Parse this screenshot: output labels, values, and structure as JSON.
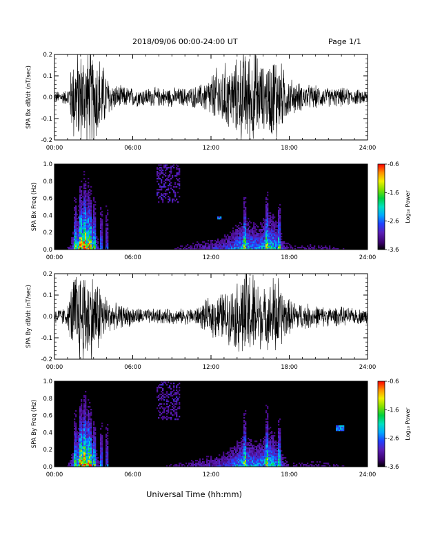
{
  "header": {
    "title": "2018/09/06   00:00-24:00 UT",
    "page": "Page 1/1"
  },
  "footer": {
    "xlabel": "Universal Time (hh:mm)"
  },
  "colorbar": {
    "label": "Log₁₀ Power",
    "ticks": [
      "-0.6",
      "-1.6",
      "-2.6",
      "-3.6"
    ],
    "range": [
      -3.6,
      -0.6
    ]
  },
  "colors": {
    "waveform": "#000000",
    "spectrogram_background": "#000000",
    "colormap": [
      "#000000",
      "#3a006a",
      "#5b1fb8",
      "#2040ff",
      "#00a8ff",
      "#00e0c0",
      "#00d040",
      "#80e000",
      "#f0f000",
      "#ff9000",
      "#ff0000"
    ]
  },
  "chart_data": [
    {
      "type": "line",
      "ylabel": "SPA Bx dB/dt (nT/sec)",
      "xlabel": "",
      "xlim": [
        0,
        24
      ],
      "ylim": [
        -0.2,
        0.2
      ],
      "xticks": [
        "00:00",
        "06:00",
        "12:00",
        "18:00",
        "24:00"
      ],
      "yticks": [
        "0.2",
        "0.1",
        "0.0",
        "-0.1",
        "-0.2"
      ],
      "series": [
        {
          "envelope_hours": [
            0,
            1,
            1.5,
            2,
            2.5,
            3,
            3.5,
            4,
            4.5,
            5,
            6,
            7,
            8,
            9,
            10,
            11,
            11.5,
            12,
            12.5,
            13,
            13.5,
            14,
            14.5,
            15,
            15.5,
            16,
            16.5,
            17,
            17.5,
            18,
            19,
            20,
            21,
            22,
            23,
            24
          ],
          "envelope_amplitude": [
            0.03,
            0.04,
            0.25,
            0.25,
            0.25,
            0.25,
            0.22,
            0.12,
            0.07,
            0.06,
            0.05,
            0.05,
            0.05,
            0.05,
            0.05,
            0.06,
            0.08,
            0.12,
            0.16,
            0.18,
            0.17,
            0.2,
            0.25,
            0.25,
            0.25,
            0.16,
            0.2,
            0.25,
            0.16,
            0.1,
            0.07,
            0.06,
            0.05,
            0.05,
            0.04,
            0.04
          ]
        }
      ]
    },
    {
      "type": "heatmap",
      "ylabel": "SPA Bx Freq (Hz)",
      "xlim": [
        0,
        24
      ],
      "ylim": [
        0,
        1.0
      ],
      "xticks": [
        "00:00",
        "06:00",
        "12:00",
        "18:00",
        "24:00"
      ],
      "yticks": [
        "1.0",
        "0.8",
        "0.6",
        "0.4",
        "0.2",
        "0.0"
      ],
      "colorbar": "Log₁₀ Power",
      "zlim": [
        -3.6,
        -0.6
      ]
    },
    {
      "type": "line",
      "ylabel": "SPA By dB/dt (nT/sec)",
      "xlabel": "",
      "xlim": [
        0,
        24
      ],
      "ylim": [
        -0.2,
        0.2
      ],
      "xticks": [
        "00:00",
        "06:00",
        "12:00",
        "18:00",
        "24:00"
      ],
      "yticks": [
        "0.2",
        "0.1",
        "0.0",
        "-0.1",
        "-0.2"
      ],
      "series": [
        {
          "envelope_hours": [
            0,
            1,
            1.5,
            2,
            2.5,
            3,
            3.5,
            4,
            4.5,
            5,
            6,
            7,
            8,
            9,
            10,
            11,
            11.5,
            12,
            12.5,
            13,
            13.5,
            14,
            14.5,
            15,
            15.5,
            16,
            16.5,
            17,
            17.5,
            18,
            19,
            20,
            21,
            22,
            23,
            24
          ],
          "envelope_amplitude": [
            0.04,
            0.05,
            0.25,
            0.25,
            0.25,
            0.22,
            0.18,
            0.1,
            0.07,
            0.06,
            0.05,
            0.04,
            0.04,
            0.04,
            0.04,
            0.05,
            0.08,
            0.1,
            0.13,
            0.13,
            0.14,
            0.18,
            0.25,
            0.25,
            0.22,
            0.14,
            0.17,
            0.25,
            0.14,
            0.09,
            0.07,
            0.06,
            0.05,
            0.05,
            0.04,
            0.04
          ]
        }
      ]
    },
    {
      "type": "heatmap",
      "ylabel": "SPA By Freq (Hz)",
      "xlim": [
        0,
        24
      ],
      "ylim": [
        0,
        1.0
      ],
      "xticks": [
        "00:00",
        "06:00",
        "12:00",
        "18:00",
        "24:00"
      ],
      "yticks": [
        "1.0",
        "0.8",
        "0.6",
        "0.4",
        "0.2",
        "0.0"
      ],
      "colorbar": "Log₁₀ Power",
      "zlim": [
        -3.6,
        -0.6
      ]
    }
  ]
}
